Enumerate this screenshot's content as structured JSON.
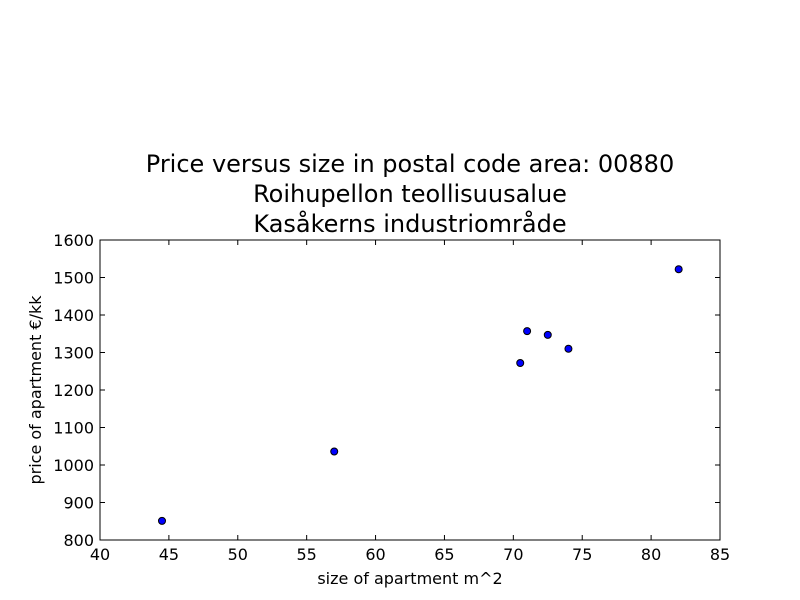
{
  "chart_data": {
    "type": "scatter",
    "title_lines": [
      "Price versus size in postal code area: 00880",
      "Roihupellon teollisuusalue",
      "Kasåkerns industriområde"
    ],
    "xlabel": "size of apartment m^2",
    "ylabel": "price of apartment €/kk",
    "xlim": [
      40,
      85
    ],
    "ylim": [
      800,
      1600
    ],
    "xticks": [
      40,
      45,
      50,
      55,
      60,
      65,
      70,
      75,
      80,
      85
    ],
    "yticks": [
      800,
      900,
      1000,
      1100,
      1200,
      1300,
      1400,
      1500,
      1600
    ],
    "grid": false,
    "marker_color": "#0000ff",
    "points": [
      {
        "x": 44.5,
        "y": 851
      },
      {
        "x": 57.0,
        "y": 1036
      },
      {
        "x": 70.5,
        "y": 1272
      },
      {
        "x": 71.0,
        "y": 1357
      },
      {
        "x": 72.5,
        "y": 1347
      },
      {
        "x": 74.0,
        "y": 1310
      },
      {
        "x": 82.0,
        "y": 1522
      }
    ]
  }
}
